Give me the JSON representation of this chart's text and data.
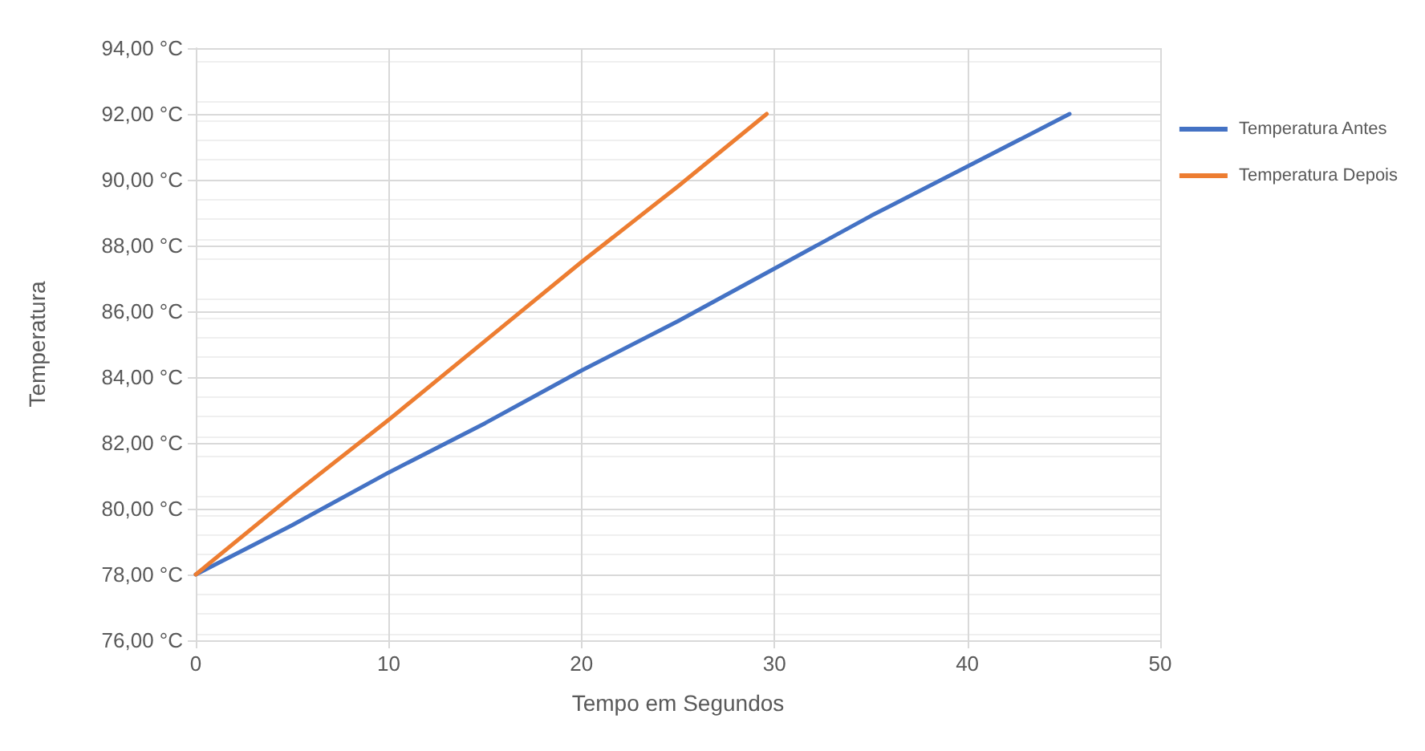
{
  "chart_data": {
    "type": "line",
    "xlabel": "Tempo em Segundos",
    "ylabel": "Temperatura",
    "xlim": [
      0,
      50
    ],
    "xticks": [
      0,
      10,
      20,
      30,
      40,
      50
    ],
    "ylim": [
      76,
      94
    ],
    "yticks": [
      {
        "value": 76,
        "label": "76,00 °C"
      },
      {
        "value": 78,
        "label": "78,00 °C"
      },
      {
        "value": 80,
        "label": "80,00 °C"
      },
      {
        "value": 82,
        "label": "82,00 °C"
      },
      {
        "value": 84,
        "label": "84,00 °C"
      },
      {
        "value": 86,
        "label": "86,00 °C"
      },
      {
        "value": 88,
        "label": "88,00 °C"
      },
      {
        "value": 90,
        "label": "90,00 °C"
      },
      {
        "value": 92,
        "label": "92,00 °C"
      },
      {
        "value": 94,
        "label": "94,00 °C"
      }
    ],
    "grid": true,
    "legend": "right",
    "marker": "none",
    "line_style": "solid",
    "series": [
      {
        "name": "Temperatura Antes",
        "color": "#4472c4",
        "x": [
          0,
          5,
          10,
          15,
          20,
          25,
          30,
          35,
          40,
          45.3
        ],
        "values": [
          78,
          79.5,
          81.1,
          82.6,
          84.2,
          85.7,
          87.3,
          88.9,
          90.4,
          92
        ]
      },
      {
        "name": "Temperatura Depois",
        "color": "#ed7d31",
        "x": [
          0,
          5,
          10,
          15,
          20,
          25,
          29.6
        ],
        "values": [
          78,
          80.4,
          82.7,
          85.1,
          87.5,
          89.8,
          92
        ]
      }
    ]
  }
}
